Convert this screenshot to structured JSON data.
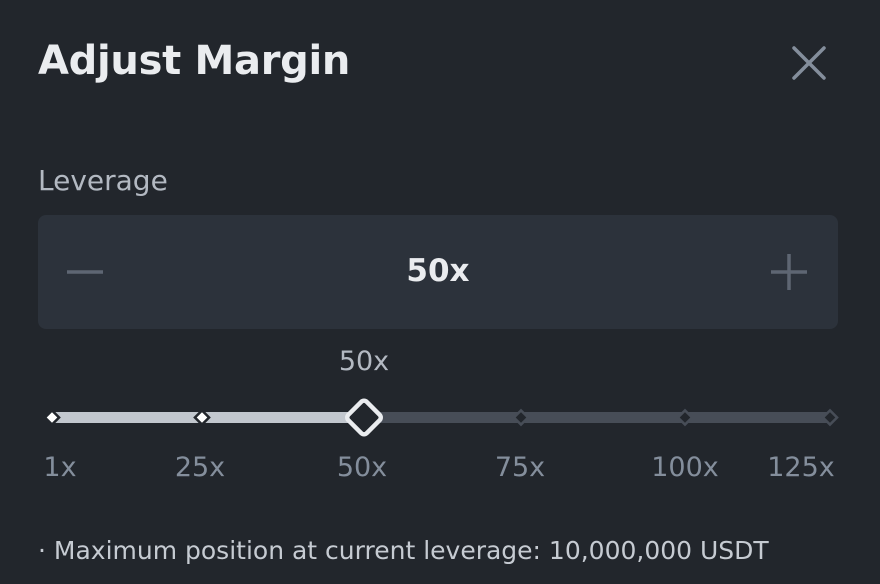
{
  "dialog": {
    "title": "Adjust Margin",
    "close_icon": "close-icon"
  },
  "leverage": {
    "label": "Leverage",
    "value": "50x",
    "decrement_icon": "minus-icon",
    "increment_icon": "plus-icon"
  },
  "slider": {
    "current_label": "50x",
    "current_value": 50,
    "min": 1,
    "max": 125,
    "ticks": [
      "1x",
      "25x",
      "50x",
      "75x",
      "100x",
      "125x"
    ],
    "active_color": "#c2c7ce",
    "track_color": "#474d57"
  },
  "note": "· Maximum position at current leverage: 10,000,000 USDT"
}
